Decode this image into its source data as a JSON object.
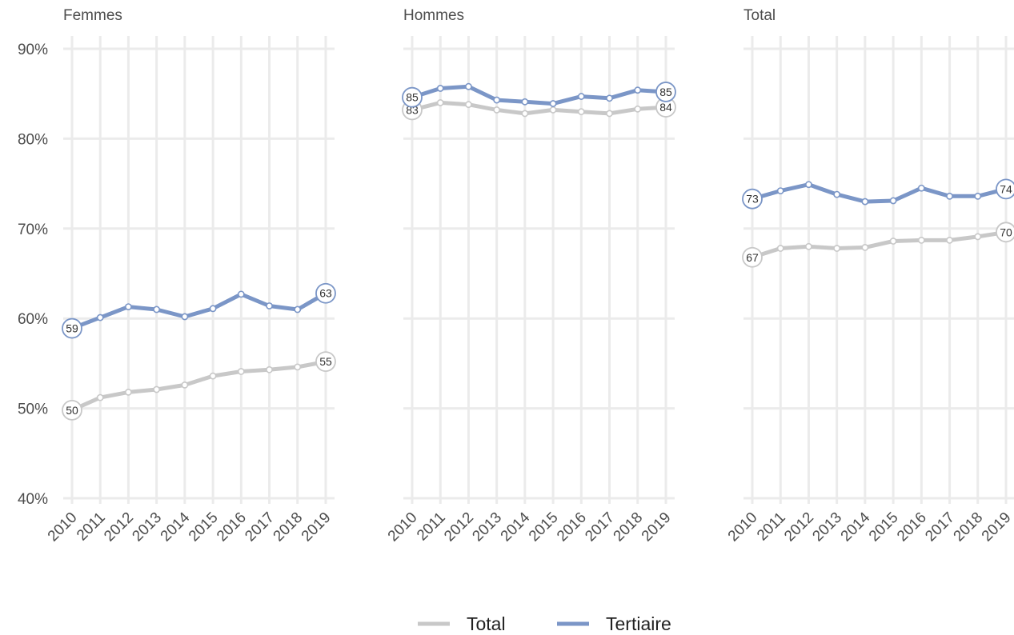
{
  "chart_data": {
    "type": "line",
    "panels": [
      "Femmes",
      "Hommes",
      "Total"
    ],
    "x": [
      2010,
      2011,
      2012,
      2013,
      2014,
      2015,
      2016,
      2017,
      2018,
      2019
    ],
    "x_tick_labels": [
      "2010",
      "2011",
      "2012",
      "2013",
      "2014",
      "2015",
      "2016",
      "2017",
      "2018",
      "2019"
    ],
    "y_tick_labels": [
      "40%",
      "50%",
      "60%",
      "70%",
      "80%",
      "90%"
    ],
    "y_ticks": [
      40,
      50,
      60,
      70,
      80,
      90
    ],
    "ylim": [
      39.5,
      91
    ],
    "grid": true,
    "legend_position": "bottom",
    "series_colors": {
      "Total": "#c8c8c8",
      "Tertiaire": "#7b96c7"
    },
    "legend": [
      {
        "name": "Total",
        "color": "#c8c8c8"
      },
      {
        "name": "Tertiaire",
        "color": "#7b96c7"
      }
    ],
    "data": {
      "Femmes": {
        "Total": [
          49.8,
          51.2,
          51.8,
          52.1,
          52.6,
          53.6,
          54.1,
          54.3,
          54.6,
          55.2
        ],
        "Tertiaire": [
          58.9,
          60.1,
          61.3,
          61.0,
          60.2,
          61.1,
          62.7,
          61.4,
          61.0,
          62.8
        ]
      },
      "Hommes": {
        "Total": [
          83.2,
          84.0,
          83.8,
          83.2,
          82.8,
          83.2,
          83.0,
          82.8,
          83.3,
          83.5
        ],
        "Tertiaire": [
          84.6,
          85.6,
          85.8,
          84.3,
          84.1,
          83.9,
          84.7,
          84.5,
          85.4,
          85.2
        ]
      },
      "Total": {
        "Total": [
          66.8,
          67.8,
          68.0,
          67.8,
          67.9,
          68.6,
          68.7,
          68.7,
          69.1,
          69.6
        ],
        "Tertiaire": [
          73.3,
          74.2,
          74.9,
          73.8,
          73.0,
          73.1,
          74.5,
          73.6,
          73.6,
          74.4
        ]
      }
    },
    "end_labels": {
      "Femmes": {
        "Total": [
          "50",
          "55"
        ],
        "Tertiaire": [
          "59",
          "63"
        ]
      },
      "Hommes": {
        "Total": [
          "83",
          "84"
        ],
        "Tertiaire": [
          "85",
          "85"
        ]
      },
      "Total": {
        "Total": [
          "67",
          "70"
        ],
        "Tertiaire": [
          "73",
          "74"
        ]
      }
    }
  }
}
